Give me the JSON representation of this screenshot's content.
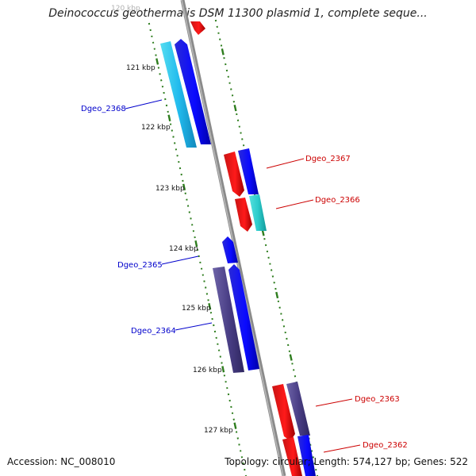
{
  "title": "Deinococcus geothermalis DSM 11300 plasmid 1, complete seque...",
  "footer": {
    "accession": "Accession: NC_008010",
    "topology": "Topology: circular; Length: 574,127 bp; Genes: 522"
  },
  "ticks": [
    {
      "label": "120 kbp",
      "faded": true
    },
    {
      "label": "121 kbp"
    },
    {
      "label": "122 kbp"
    },
    {
      "label": "123 kbp"
    },
    {
      "label": "124 kbp"
    },
    {
      "label": "125 kbp"
    },
    {
      "label": "126 kbp"
    },
    {
      "label": "127 kbp"
    }
  ],
  "gene_labels": [
    {
      "name": "Dgeo_2368",
      "side": "left",
      "color": "#0000cc"
    },
    {
      "name": "Dgeo_2367",
      "side": "right",
      "color": "#cc0000"
    },
    {
      "name": "Dgeo_2366",
      "side": "right",
      "color": "#cc0000"
    },
    {
      "name": "Dgeo_2365",
      "side": "left",
      "color": "#0000cc"
    },
    {
      "name": "Dgeo_2364",
      "side": "left",
      "color": "#0000cc"
    },
    {
      "name": "Dgeo_2363",
      "side": "right",
      "color": "#cc0000"
    },
    {
      "name": "Dgeo_2362",
      "side": "right",
      "color": "#cc0000"
    }
  ],
  "colors": {
    "backbone": "#8c8c8c",
    "tick": "#2e7d1e",
    "forward_cds": "#0000ee",
    "reverse_cds": "#ee0000",
    "cyan_feature": "#22bbdd",
    "teal_feature": "#33cccc",
    "slate_feature": "#4a3f86"
  }
}
